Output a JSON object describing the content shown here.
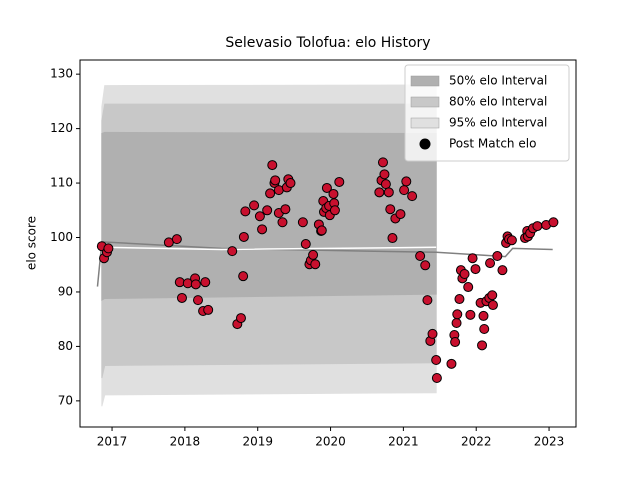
{
  "chart_data": {
    "type": "scatter",
    "title": "Selevasio Tolofua: elo History",
    "y_label": "elo score",
    "xlim": [
      2016.56,
      2023.37
    ],
    "ylim": [
      65.2,
      132.6
    ],
    "xticks": [
      2017,
      2018,
      2019,
      2020,
      2021,
      2022,
      2023
    ],
    "yticks": [
      70,
      80,
      90,
      100,
      110,
      120,
      130
    ],
    "legend": "upper right",
    "bands": [
      {
        "name": "50% elo Interval",
        "color": "#b0b0b0",
        "x": [
          2016.86,
          2016.9,
          2021.45
        ],
        "lower": [
          88.5,
          88.8,
          89.6
        ],
        "upper": [
          119.1,
          119.3,
          119.1
        ]
      },
      {
        "name": "80% elo Interval",
        "color": "#c8c8c8",
        "x": [
          2016.86,
          2016.9,
          2021.45
        ],
        "lower": [
          74.2,
          76.5,
          77.0
        ],
        "upper": [
          121.5,
          124.5,
          124.5
        ]
      },
      {
        "name": "95% elo Interval",
        "color": "#e0e0e0",
        "x": [
          2016.86,
          2016.9,
          2021.45
        ],
        "lower": [
          69.0,
          71.1,
          71.5
        ],
        "upper": [
          124.0,
          127.9,
          128.0
        ]
      }
    ],
    "lines": [
      {
        "color": "#808080",
        "x": [
          2016.8,
          2016.86,
          2018.5,
          2020.5,
          2021.45,
          2022.4,
          2022.5,
          2023.05
        ],
        "values": [
          91.0,
          99.2,
          98.0,
          97.5,
          97.3,
          96.5,
          98.0,
          97.8
        ]
      },
      {
        "color": "#ffffff",
        "x": [
          2016.86,
          2018.5,
          2021.45
        ],
        "values": [
          98.2,
          97.8,
          98.2
        ]
      }
    ],
    "series": [
      {
        "name": "Post Match elo",
        "color": "#c8102e",
        "edgecolor": "#000000",
        "x": [
          2016.86,
          2016.89,
          2016.93,
          2016.95,
          2017.78,
          2017.89,
          2017.93,
          2017.96,
          2018.04,
          2018.14,
          2018.15,
          2018.18,
          2018.25,
          2018.28,
          2018.32,
          2018.65,
          2018.72,
          2018.77,
          2018.8,
          2018.81,
          2018.83,
          2018.95,
          2019.03,
          2019.06,
          2019.13,
          2019.17,
          2019.2,
          2019.23,
          2019.24,
          2019.29,
          2019.29,
          2019.34,
          2019.38,
          2019.4,
          2019.42,
          2019.45,
          2019.62,
          2019.66,
          2019.71,
          2019.73,
          2019.76,
          2019.79,
          2019.84,
          2019.87,
          2019.88,
          2019.9,
          2019.91,
          2019.94,
          2019.95,
          2019.98,
          2019.99,
          2020.04,
          2020.05,
          2020.06,
          2020.12,
          2020.67,
          2020.7,
          2020.72,
          2020.74,
          2020.76,
          2020.8,
          2020.82,
          2020.85,
          2020.89,
          2020.96,
          2021.01,
          2021.04,
          2021.12,
          2021.23,
          2021.3,
          2021.33,
          2021.37,
          2021.4,
          2021.45,
          2021.46,
          2021.66,
          2021.7,
          2021.71,
          2021.73,
          2021.74,
          2021.77,
          2021.79,
          2021.81,
          2021.84,
          2021.89,
          2021.92,
          2021.95,
          2021.99,
          2022.06,
          2022.08,
          2022.1,
          2022.11,
          2022.14,
          2022.18,
          2022.19,
          2022.22,
          2022.23,
          2022.29,
          2022.36,
          2022.41,
          2022.43,
          2022.45,
          2022.49,
          2022.67,
          2022.7,
          2022.71,
          2022.74,
          2022.78,
          2022.84,
          2022.96,
          2023.06
        ],
        "values": [
          98.4,
          96.2,
          97.3,
          98.0,
          99.1,
          99.7,
          91.8,
          88.9,
          91.6,
          92.5,
          91.4,
          88.5,
          86.5,
          91.8,
          86.7,
          97.5,
          84.1,
          85.2,
          92.9,
          100.1,
          104.8,
          105.9,
          103.9,
          101.5,
          105.0,
          108.1,
          113.3,
          110.0,
          110.5,
          108.7,
          104.5,
          102.8,
          105.2,
          109.2,
          110.7,
          110.0,
          102.8,
          98.8,
          95.1,
          95.8,
          96.8,
          95.1,
          102.4,
          101.2,
          101.3,
          106.7,
          104.7,
          105.4,
          109.1,
          105.8,
          104.1,
          108.0,
          106.3,
          105.0,
          110.2,
          108.3,
          110.5,
          113.8,
          111.6,
          109.8,
          108.3,
          105.2,
          99.9,
          103.5,
          104.3,
          108.7,
          110.3,
          107.6,
          96.6,
          94.9,
          88.5,
          81.0,
          82.3,
          77.5,
          74.2,
          76.8,
          82.1,
          80.8,
          84.3,
          85.9,
          88.7,
          94.0,
          92.5,
          93.3,
          90.9,
          85.8,
          96.2,
          94.2,
          88.0,
          80.2,
          85.6,
          83.2,
          88.3,
          88.9,
          95.3,
          89.4,
          87.6,
          96.6,
          94.0,
          99.0,
          100.2,
          99.7,
          99.5,
          99.9,
          101.2,
          100.2,
          100.8,
          101.7,
          102.1,
          102.3,
          102.8
        ]
      }
    ]
  }
}
